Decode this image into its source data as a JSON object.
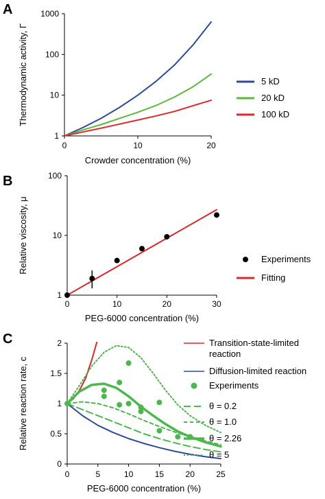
{
  "chart_data": [
    {
      "panel": "A",
      "type": "line",
      "y_scale": "log",
      "xlabel": "Crowder concentration (%)",
      "ylabel": "Thermodynamic activity, Γ",
      "xlim": [
        0,
        20
      ],
      "ylim": [
        1,
        1000
      ],
      "xticks": [
        "0",
        "10",
        "20"
      ],
      "yticks": [
        "1",
        "10",
        "100",
        "1000"
      ],
      "legend_position": "right",
      "series": [
        {
          "name": "5 kD",
          "color": "#2b4a9c",
          "x": [
            0,
            2.5,
            5,
            7.5,
            10,
            12.5,
            15,
            17.5,
            20
          ],
          "y": [
            1,
            1.6,
            2.7,
            5,
            10,
            22,
            55,
            170,
            630
          ]
        },
        {
          "name": "20 kD",
          "color": "#5cb83a",
          "x": [
            0,
            2.5,
            5,
            7.5,
            10,
            12.5,
            15,
            17.5,
            20
          ],
          "y": [
            1,
            1.4,
            1.9,
            2.7,
            3.8,
            5.6,
            9,
            16,
            33
          ]
        },
        {
          "name": "100 kD",
          "color": "#e0262a",
          "x": [
            0,
            2.5,
            5,
            7.5,
            10,
            12.5,
            15,
            17.5,
            20
          ],
          "y": [
            1,
            1.25,
            1.55,
            1.95,
            2.45,
            3.1,
            4,
            5.5,
            7.5
          ]
        }
      ]
    },
    {
      "panel": "B",
      "type": "scatter",
      "y_scale": "log",
      "xlabel": "PEG-6000 concentration (%)",
      "ylabel": "Relative viscosity, μ",
      "xlim": [
        0,
        30
      ],
      "ylim": [
        1,
        100
      ],
      "xticks": [
        "0",
        "10",
        "20",
        "30"
      ],
      "yticks": [
        "1",
        "10",
        "100"
      ],
      "legend_position": "right",
      "series": [
        {
          "name": "Experiments",
          "color": "#000000",
          "x": [
            0,
            5,
            10,
            15,
            20,
            30
          ],
          "y": [
            1,
            1.9,
            3.8,
            6,
            9.5,
            22
          ],
          "yerr_at_5": [
            1.3,
            2.6
          ]
        },
        {
          "name": "Fitting",
          "color": "#e0262a",
          "x": [
            0,
            30
          ],
          "y": [
            1,
            27
          ]
        }
      ]
    },
    {
      "panel": "C",
      "type": "line",
      "xlabel": "PEG-6000 concentration (%)",
      "ylabel": "Relative reaction rate, c",
      "xlim": [
        0,
        25
      ],
      "ylim": [
        0,
        2
      ],
      "xticks": [
        "0",
        "5",
        "10",
        "15",
        "20",
        "25"
      ],
      "yticks": [
        "0",
        "0.5",
        "1",
        "1.5",
        "2"
      ],
      "legend_position": "right",
      "series": [
        {
          "name": "Transition-state-limited reaction",
          "color": "#e0262a",
          "style": "solid",
          "x": [
            0,
            1,
            2,
            3,
            4,
            5
          ],
          "y": [
            1,
            1.08,
            1.22,
            1.42,
            1.72,
            2.08
          ]
        },
        {
          "name": "Diffusion-limited reaction",
          "color": "#2b4a9c",
          "style": "solid",
          "x": [
            0,
            2.5,
            5,
            7.5,
            10,
            12.5,
            15,
            17.5,
            20,
            22.5,
            25
          ],
          "y": [
            1,
            0.8,
            0.64,
            0.52,
            0.42,
            0.34,
            0.27,
            0.21,
            0.16,
            0.12,
            0.09
          ]
        },
        {
          "name": "Experiments",
          "color": "#4cb84c",
          "style": "points",
          "x": [
            0,
            6,
            6,
            8.5,
            8.5,
            10,
            10,
            12,
            12,
            15,
            15,
            18,
            20
          ],
          "y": [
            1,
            1.22,
            1.12,
            1.35,
            0.98,
            1.67,
            1.0,
            0.94,
            0.87,
            1.02,
            0.55,
            0.45,
            0.45
          ]
        },
        {
          "name": "θ = 0.2",
          "color": "#4cb84c",
          "style": "longdash",
          "x": [
            0,
            2.5,
            5,
            7.5,
            10,
            12.5,
            15,
            17.5,
            20,
            22.5,
            25
          ],
          "y": [
            1,
            0.9,
            0.8,
            0.7,
            0.6,
            0.5,
            0.42,
            0.35,
            0.29,
            0.24,
            0.2
          ]
        },
        {
          "name": "θ = 1.0",
          "color": "#4cb84c",
          "style": "dash",
          "x": [
            0,
            2.5,
            5,
            7.5,
            10,
            12.5,
            15,
            17.5,
            20,
            22.5,
            25
          ],
          "y": [
            1,
            1.03,
            1.0,
            0.93,
            0.83,
            0.72,
            0.62,
            0.53,
            0.45,
            0.38,
            0.32
          ]
        },
        {
          "name": "θ = 2.26",
          "color": "#4cb84c",
          "style": "thick",
          "x": [
            0,
            2,
            4,
            6,
            8,
            10,
            12,
            14,
            16,
            18,
            20,
            22.5,
            25
          ],
          "y": [
            1,
            1.2,
            1.31,
            1.33,
            1.26,
            1.12,
            0.95,
            0.8,
            0.66,
            0.54,
            0.45,
            0.36,
            0.29
          ]
        },
        {
          "name": "θ = 5",
          "color": "#4cb84c",
          "style": "dot",
          "x": [
            0,
            2,
            4,
            6,
            8,
            10,
            12,
            14,
            16,
            18,
            20,
            22.5,
            25
          ],
          "y": [
            1,
            1.3,
            1.62,
            1.85,
            1.96,
            1.93,
            1.76,
            1.5,
            1.22,
            0.98,
            0.8,
            0.64,
            0.52
          ]
        }
      ]
    }
  ]
}
